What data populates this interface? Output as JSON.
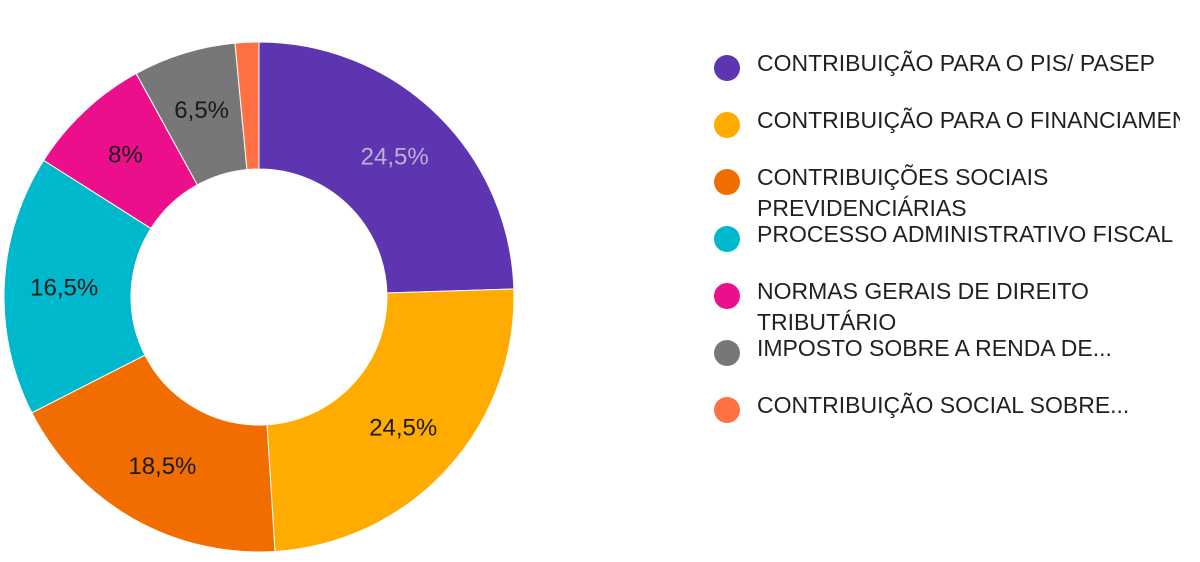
{
  "chart_data": {
    "type": "pie",
    "variant": "donut",
    "legend_position": "right",
    "slices": [
      {
        "label": "CONTRIBUIÇÃO PARA O PIS/ PASEP",
        "value": 24.5,
        "display": "24,5%",
        "color": "#5e35b1",
        "label_color": "#b9b1d6"
      },
      {
        "label": "CONTRIBUIÇÃO PARA O FINANCIAMENTO DA SEGURID...",
        "value": 24.5,
        "display": "24,5%",
        "color": "#ffab00",
        "label_color": "#1a1a1a"
      },
      {
        "label": "CONTRIBUIÇÕES SOCIAIS PREVIDENCIÁRIAS",
        "value": 18.5,
        "display": "18,5%",
        "color": "#f26d00",
        "label_color": "#1a1a1a"
      },
      {
        "label": "PROCESSO ADMINISTRATIVO FISCAL",
        "value": 16.5,
        "display": "16,5%",
        "color": "#00b8cc",
        "label_color": "#1a1a1a"
      },
      {
        "label": "NORMAS GERAIS DE DIREITO TRIBUTÁRIO",
        "value": 8,
        "display": "8%",
        "color": "#eb0f8c",
        "label_color": "#1a1a1a"
      },
      {
        "label": "IMPOSTO SOBRE A RENDA DE...",
        "value": 6.5,
        "display": "6,5%",
        "color": "#777777",
        "label_color": "#1a1a1a"
      },
      {
        "label": "CONTRIBUIÇÃO SOCIAL SOBRE...",
        "value": 1.5,
        "display": "",
        "color": "#ff7043",
        "label_color": "#1a1a1a"
      }
    ]
  }
}
